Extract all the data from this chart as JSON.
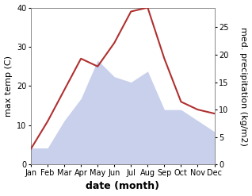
{
  "months": [
    "Jan",
    "Feb",
    "Mar",
    "Apr",
    "May",
    "Jun",
    "Jul",
    "Aug",
    "Sep",
    "Oct",
    "Nov",
    "Dec"
  ],
  "max_temp": [
    4,
    11,
    19,
    27,
    25,
    31,
    39,
    40,
    27,
    16,
    14,
    13
  ],
  "precipitation": [
    3,
    3,
    8,
    12,
    19,
    16,
    15,
    17,
    10,
    10,
    8,
    6
  ],
  "temp_color": "#b03030",
  "precip_fill_color": "#c8d0ec",
  "left_ylim": [
    0,
    40
  ],
  "right_ylim": [
    0,
    28.6
  ],
  "right_yticks": [
    0,
    5,
    10,
    15,
    20,
    25
  ],
  "left_yticks": [
    0,
    10,
    20,
    30,
    40
  ],
  "xlabel": "date (month)",
  "ylabel_left": "max temp (C)",
  "ylabel_right": "med. precipitation (kg/m2)",
  "axis_label_fontsize": 8,
  "tick_fontsize": 7
}
